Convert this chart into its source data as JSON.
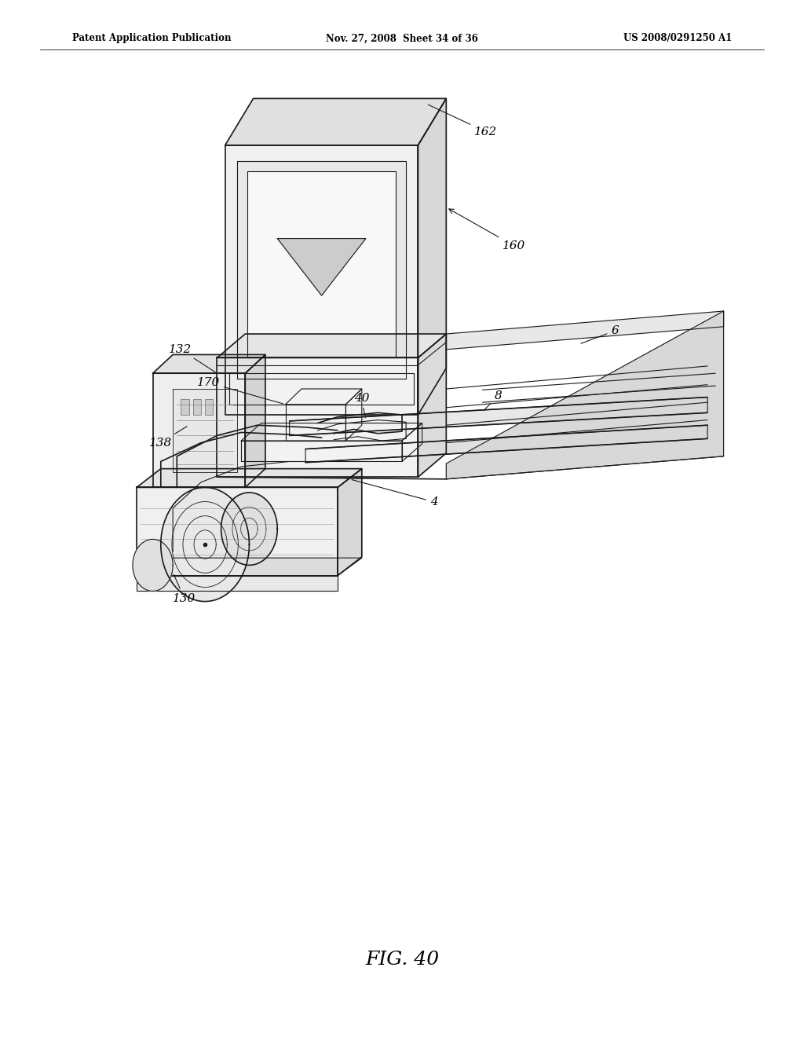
{
  "title_left": "Patent Application Publication",
  "title_center": "Nov. 27, 2008  Sheet 34 of 36",
  "title_right": "US 2008/0291250 A1",
  "figure_label": "FIG. 40",
  "bg_color": "#ffffff",
  "line_color": "#1a1a1a",
  "header_color": "#000000"
}
